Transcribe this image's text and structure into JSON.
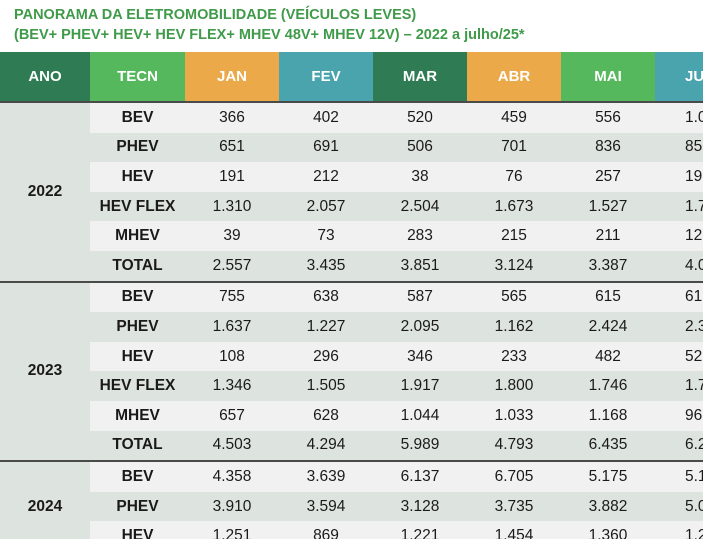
{
  "title": {
    "line1": "PANORAMA DA ELETROMOBILIDADE (VEÍCULOS LEVES)",
    "line2": "(BEV+ PHEV+ HEV+ HEV FLEX+ MHEV 48V+ MHEV 12V) – 2022 a julho/25*"
  },
  "colors": {
    "title_green": "#3f9a49",
    "dark_green": "#2e7b54",
    "light_green": "#56b85d",
    "orange": "#eca94a",
    "teal": "#4aa4ae"
  },
  "headers": [
    "ANO",
    "TECN",
    "JAN",
    "FEV",
    "MAR",
    "ABR",
    "MAI",
    "JU"
  ],
  "groups": [
    {
      "year": "2022",
      "rows": [
        {
          "tec": "BEV",
          "v": [
            "366",
            "402",
            "520",
            "459",
            "556",
            "1.0"
          ]
        },
        {
          "tec": "PHEV",
          "v": [
            "651",
            "691",
            "506",
            "701",
            "836",
            "85"
          ]
        },
        {
          "tec": "HEV",
          "v": [
            "191",
            "212",
            "38",
            "76",
            "257",
            "19"
          ]
        },
        {
          "tec": "HEV FLEX",
          "v": [
            "1.310",
            "2.057",
            "2.504",
            "1.673",
            "1.527",
            "1.7"
          ]
        },
        {
          "tec": "MHEV",
          "v": [
            "39",
            "73",
            "283",
            "215",
            "211",
            "12"
          ]
        },
        {
          "tec": "TOTAL",
          "v": [
            "2.557",
            "3.435",
            "3.851",
            "3.124",
            "3.387",
            "4.0"
          ]
        }
      ]
    },
    {
      "year": "2023",
      "rows": [
        {
          "tec": "BEV",
          "v": [
            "755",
            "638",
            "587",
            "565",
            "615",
            "61"
          ]
        },
        {
          "tec": "PHEV",
          "v": [
            "1.637",
            "1.227",
            "2.095",
            "1.162",
            "2.424",
            "2.3"
          ]
        },
        {
          "tec": "HEV",
          "v": [
            "108",
            "296",
            "346",
            "233",
            "482",
            "52"
          ]
        },
        {
          "tec": "HEV FLEX",
          "v": [
            "1.346",
            "1.505",
            "1.917",
            "1.800",
            "1.746",
            "1.7"
          ]
        },
        {
          "tec": "MHEV",
          "v": [
            "657",
            "628",
            "1.044",
            "1.033",
            "1.168",
            "96"
          ]
        },
        {
          "tec": "TOTAL",
          "v": [
            "4.503",
            "4.294",
            "5.989",
            "4.793",
            "6.435",
            "6.2"
          ]
        }
      ]
    },
    {
      "year": "2024",
      "rows": [
        {
          "tec": "BEV",
          "v": [
            "4.358",
            "3.639",
            "6.137",
            "6.705",
            "5.175",
            "5.1"
          ]
        },
        {
          "tec": "PHEV",
          "v": [
            "3.910",
            "3.594",
            "3.128",
            "3.735",
            "3.882",
            "5.0"
          ]
        },
        {
          "tec": "HEV",
          "v": [
            "1.251",
            "869",
            "1.221",
            "1.454",
            "1.360",
            "1.2"
          ]
        }
      ]
    }
  ]
}
